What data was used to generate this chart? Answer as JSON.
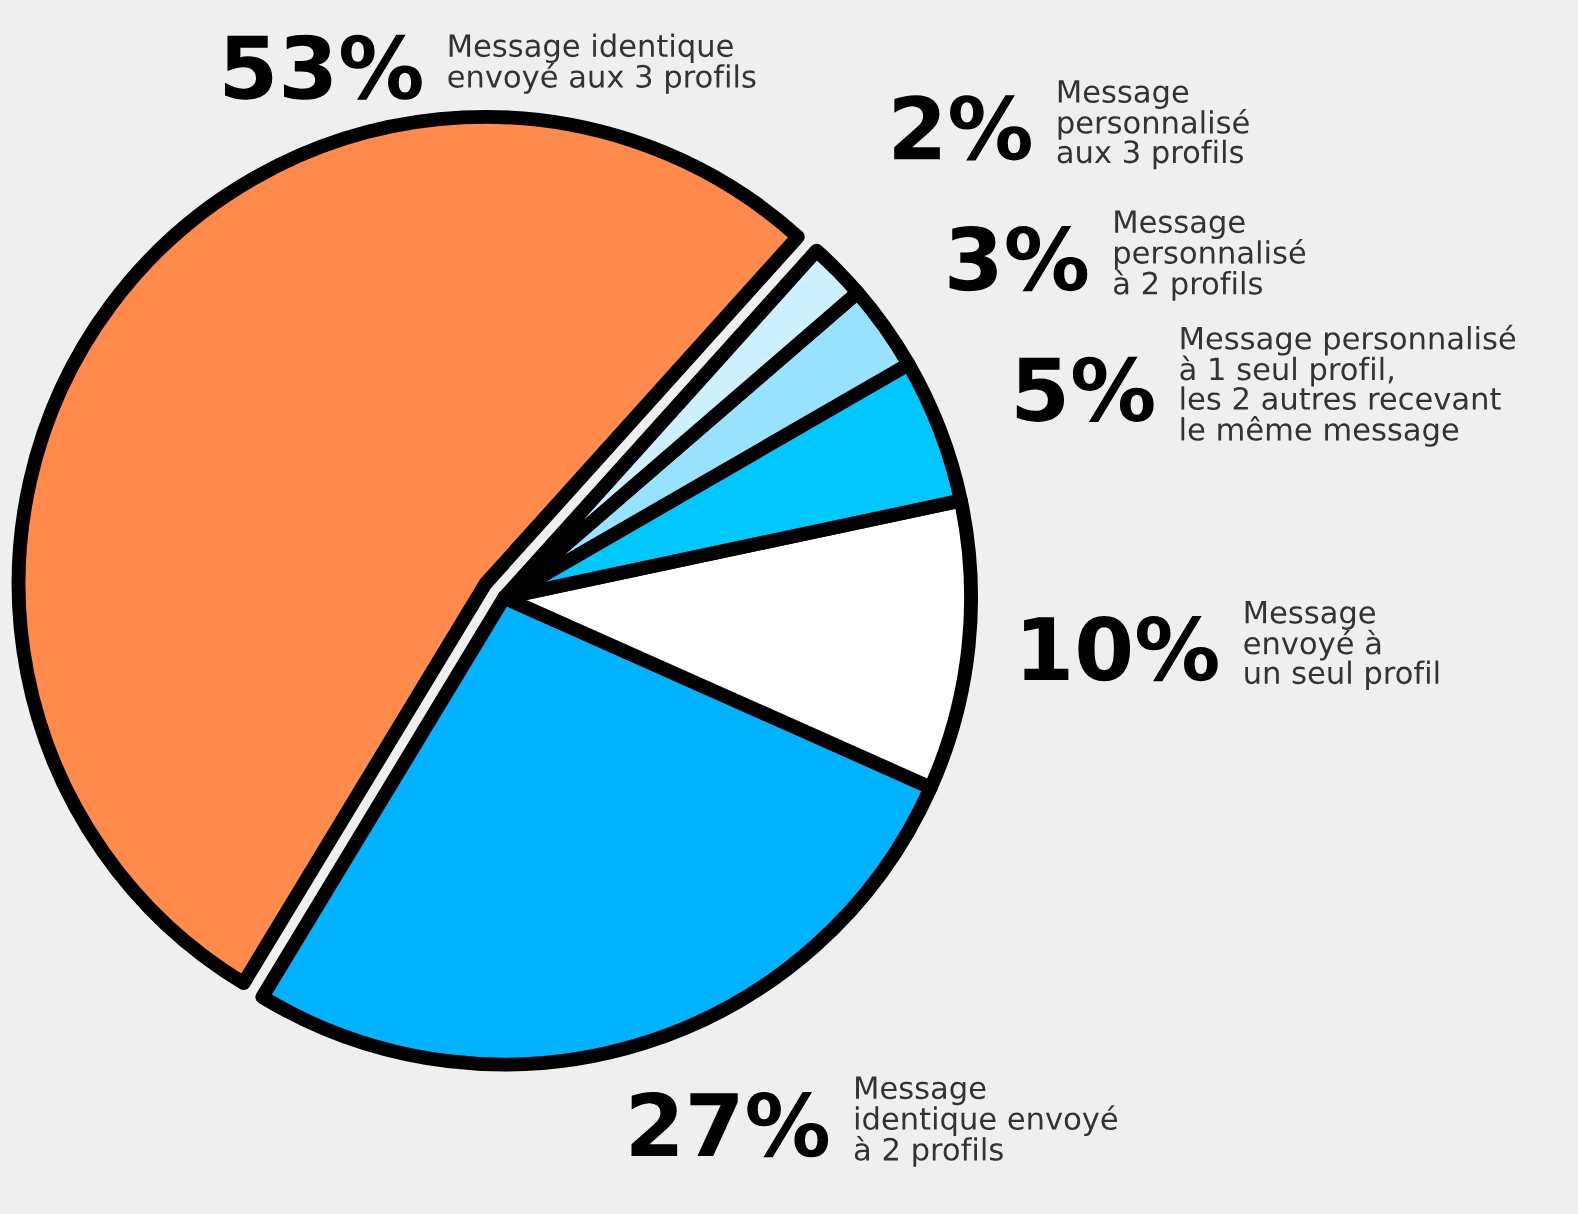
{
  "chart_data": {
    "type": "pie",
    "categories": [
      "Message identique\nenvoyé aux 3 profils",
      "Message\nidentique envoyé\nà 2 profils",
      "Message\nenvoyé à\nun seul profil",
      "Message personnalisé\nà 1 seul profil,\nles 2 autres recevant\nle même message",
      "Message\npersonnalisé\nà 2 profils",
      "Message\npersonnalisé\naux 3 profils"
    ],
    "values": [
      53,
      27,
      10,
      5,
      3,
      2
    ],
    "colors": [
      "#ff8a4c",
      "#00b2ff",
      "#ffffff",
      "#00c8ff",
      "#99e2ff",
      "#cdf0ff"
    ],
    "value_labels": [
      "53%",
      "27%",
      "10%",
      "5%",
      "3%",
      "2%"
    ],
    "legend": false
  }
}
